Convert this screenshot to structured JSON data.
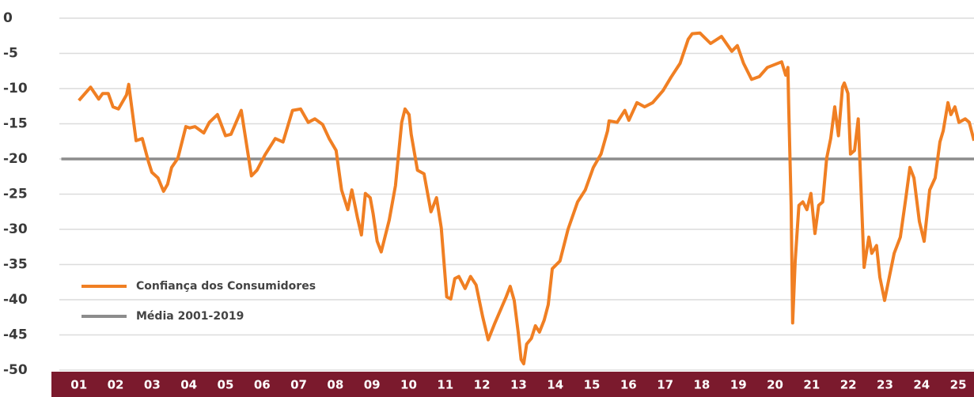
{
  "chart_data": {
    "type": "line",
    "xlim": [
      2000.52,
      2025.43
    ],
    "xticks": [
      {
        "value": 2001,
        "label": "01"
      },
      {
        "value": 2002,
        "label": "02"
      },
      {
        "value": 2003,
        "label": "03"
      },
      {
        "value": 2004,
        "label": "04"
      },
      {
        "value": 2005,
        "label": "05"
      },
      {
        "value": 2006,
        "label": "06"
      },
      {
        "value": 2007,
        "label": "07"
      },
      {
        "value": 2008,
        "label": "08"
      },
      {
        "value": 2009,
        "label": "09"
      },
      {
        "value": 2010,
        "label": "10"
      },
      {
        "value": 2011,
        "label": "11"
      },
      {
        "value": 2012,
        "label": "12"
      },
      {
        "value": 2013,
        "label": "13"
      },
      {
        "value": 2014,
        "label": "14"
      },
      {
        "value": 2015,
        "label": "15"
      },
      {
        "value": 2016,
        "label": "16"
      },
      {
        "value": 2017,
        "label": "17"
      },
      {
        "value": 2018,
        "label": "18"
      },
      {
        "value": 2019,
        "label": "19"
      },
      {
        "value": 2020,
        "label": "20"
      },
      {
        "value": 2021,
        "label": "21"
      },
      {
        "value": 2022,
        "label": "22"
      },
      {
        "value": 2023,
        "label": "23"
      },
      {
        "value": 2024,
        "label": "24"
      },
      {
        "value": 2025,
        "label": "25"
      }
    ],
    "ylim": [
      -50,
      0
    ],
    "yticks": [
      0,
      -5,
      -10,
      -15,
      -20,
      -25,
      -30,
      -35,
      -40,
      -45,
      -50
    ],
    "grid": true,
    "legend": "lower-left",
    "series": [
      {
        "name": "Confiança dos Consumidores",
        "color": "#f07f23",
        "x": [
          2001.0,
          2001.32,
          2001.54,
          2001.65,
          2001.8,
          2001.93,
          2002.08,
          2002.3,
          2002.36,
          2002.56,
          2002.73,
          2002.9,
          2002.99,
          2003.16,
          2003.31,
          2003.42,
          2003.53,
          2003.7,
          2003.92,
          2004.02,
          2004.17,
          2004.41,
          2004.56,
          2004.78,
          2005.0,
          2005.15,
          2005.43,
          2005.71,
          2005.86,
          2006.08,
          2006.36,
          2006.57,
          2006.83,
          2007.05,
          2007.26,
          2007.44,
          2007.65,
          2007.83,
          2008.02,
          2008.17,
          2008.34,
          2008.45,
          2008.6,
          2008.71,
          2008.82,
          2008.95,
          2009.03,
          2009.14,
          2009.25,
          2009.47,
          2009.64,
          2009.81,
          2009.9,
          2010.01,
          2010.07,
          2010.24,
          2010.42,
          2010.61,
          2010.76,
          2010.89,
          2011.04,
          2011.15,
          2011.26,
          2011.37,
          2011.54,
          2011.69,
          2011.84,
          2012.02,
          2012.17,
          2012.34,
          2012.66,
          2012.77,
          2012.88,
          2012.99,
          2013.07,
          2013.14,
          2013.22,
          2013.35,
          2013.46,
          2013.57,
          2013.7,
          2013.81,
          2013.92,
          2014.13,
          2014.35,
          2014.61,
          2014.82,
          2015.04,
          2015.25,
          2015.43,
          2015.47,
          2015.69,
          2015.9,
          2016.01,
          2016.23,
          2016.44,
          2016.66,
          2016.94,
          2017.16,
          2017.41,
          2017.63,
          2017.74,
          2017.95,
          2018.24,
          2018.54,
          2018.82,
          2018.97,
          2019.14,
          2019.36,
          2019.57,
          2019.79,
          2020.18,
          2020.29,
          2020.35,
          2020.37,
          2020.44,
          2020.48,
          2020.55,
          2020.65,
          2020.76,
          2020.87,
          2020.98,
          2021.09,
          2021.19,
          2021.3,
          2021.41,
          2021.52,
          2021.63,
          2021.73,
          2021.84,
          2021.89,
          2021.99,
          2022.06,
          2022.17,
          2022.27,
          2022.43,
          2022.56,
          2022.64,
          2022.77,
          2022.86,
          2022.99,
          2023.14,
          2023.25,
          2023.42,
          2023.57,
          2023.68,
          2023.79,
          2023.94,
          2024.07,
          2024.22,
          2024.37,
          2024.5,
          2024.59,
          2024.72,
          2024.8,
          2024.91,
          2025.02,
          2025.19,
          2025.3,
          2025.43
        ],
        "values": [
          -11.7,
          -9.8,
          -11.5,
          -10.7,
          -10.7,
          -12.6,
          -12.9,
          -10.9,
          -9.4,
          -17.4,
          -17.1,
          -20.4,
          -21.9,
          -22.7,
          -24.6,
          -23.6,
          -21.2,
          -19.9,
          -15.4,
          -15.6,
          -15.4,
          -16.3,
          -14.8,
          -13.7,
          -16.7,
          -16.5,
          -13.1,
          -22.4,
          -21.6,
          -19.4,
          -17.1,
          -17.6,
          -13.1,
          -12.9,
          -14.8,
          -14.3,
          -15.1,
          -17.1,
          -18.8,
          -24.4,
          -27.2,
          -24.4,
          -28.3,
          -30.8,
          -24.9,
          -25.5,
          -27.8,
          -31.7,
          -33.2,
          -28.7,
          -23.8,
          -14.8,
          -12.9,
          -13.7,
          -16.5,
          -21.6,
          -22.1,
          -27.5,
          -25.5,
          -29.8,
          -39.6,
          -39.9,
          -37.0,
          -36.7,
          -38.4,
          -36.7,
          -37.9,
          -42.4,
          -45.7,
          -43.5,
          -39.6,
          -38.1,
          -40.1,
          -44.6,
          -48.5,
          -49.1,
          -46.3,
          -45.5,
          -43.7,
          -44.6,
          -42.9,
          -40.7,
          -35.6,
          -34.5,
          -30.0,
          -26.1,
          -24.4,
          -21.2,
          -19.3,
          -16.0,
          -14.6,
          -14.8,
          -13.1,
          -14.5,
          -12.0,
          -12.6,
          -12.0,
          -10.3,
          -8.4,
          -6.4,
          -3.0,
          -2.2,
          -2.1,
          -3.6,
          -2.6,
          -4.7,
          -3.9,
          -6.4,
          -8.7,
          -8.3,
          -7.0,
          -6.2,
          -8.1,
          -7.0,
          -12.0,
          -26.6,
          -43.3,
          -34.5,
          -26.6,
          -26.1,
          -27.2,
          -24.9,
          -30.6,
          -26.6,
          -26.1,
          -19.9,
          -17.1,
          -12.6,
          -16.7,
          -9.8,
          -9.2,
          -10.7,
          -19.3,
          -18.8,
          -14.3,
          -35.4,
          -31.1,
          -33.4,
          -32.3,
          -36.8,
          -40.1,
          -36.2,
          -33.4,
          -31.1,
          -25.5,
          -21.2,
          -22.7,
          -28.9,
          -31.7,
          -24.4,
          -22.7,
          -17.6,
          -16.0,
          -12.0,
          -13.7,
          -12.6,
          -14.8,
          -14.3,
          -14.8,
          -17.4
        ]
      },
      {
        "name": "Média 2001-2019",
        "color": "#8c8c8c",
        "x": [
          2000.52,
          2025.43
        ],
        "values": [
          -20,
          -20
        ]
      }
    ]
  }
}
